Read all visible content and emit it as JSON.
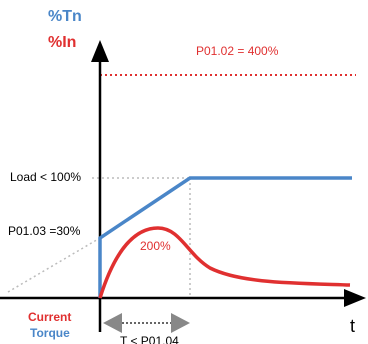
{
  "labels": {
    "torque_axis": "%Tn",
    "current_axis": "%In",
    "limit": "P01.02 = 400%",
    "load": "Load < 100%",
    "start_torque": "P01.03 =30%",
    "peak": "200%",
    "current_legend": "Current",
    "torque_legend": "Torque",
    "time_axis": "t",
    "ramp_time": "T < P01.04"
  }
}
